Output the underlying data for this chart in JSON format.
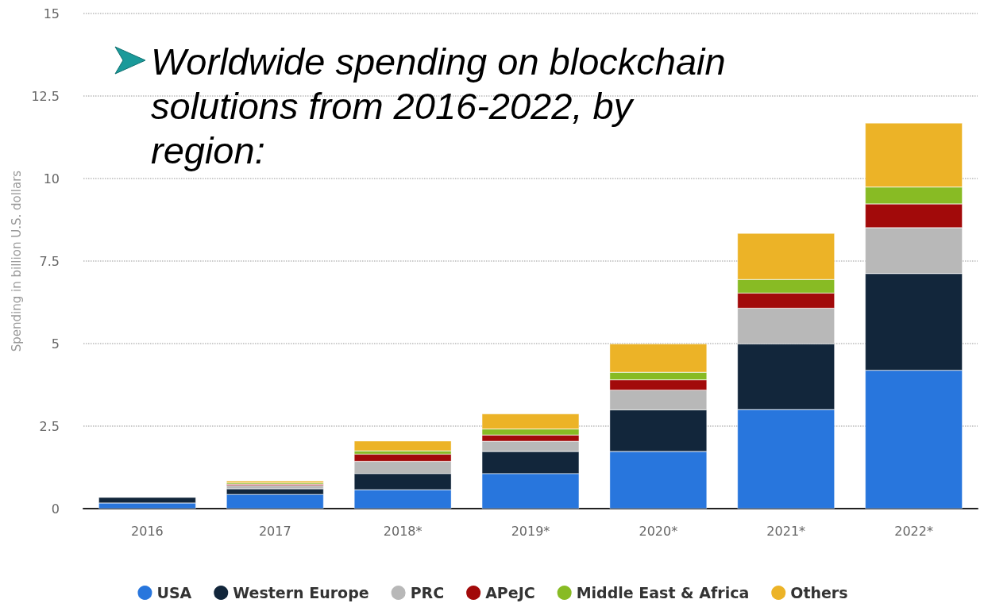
{
  "chart_data": {
    "type": "bar",
    "title": "Worldwide spending on blockchain solutions from 2016-2022, by region:",
    "ylabel": "Spending in billion U.S. dollars",
    "categories": [
      "2016",
      "2017",
      "2018*",
      "2019*",
      "2020*",
      "2021*",
      "2022*"
    ],
    "stacked": true,
    "series": [
      {
        "name": "USA",
        "color": "#2876dd",
        "values": [
          0.17,
          0.43,
          0.57,
          1.06,
          1.73,
          3.0,
          4.19
        ]
      },
      {
        "name": "Western Europe",
        "color": "#12263b",
        "values": [
          0.17,
          0.17,
          0.49,
          0.67,
          1.26,
          1.99,
          2.93
        ]
      },
      {
        "name": "PRC",
        "color": "#b8b8b8",
        "values": [
          null,
          0.1,
          0.37,
          0.31,
          0.6,
          1.08,
          1.39
        ]
      },
      {
        "name": "APeJC",
        "color": "#a20a0a",
        "values": [
          null,
          0.04,
          0.22,
          0.19,
          0.31,
          0.46,
          0.72
        ]
      },
      {
        "name": "Middle East & Africa",
        "color": "#88bb24",
        "values": [
          null,
          0.04,
          0.1,
          0.18,
          0.23,
          0.41,
          0.51
        ]
      },
      {
        "name": "Others",
        "color": "#ecb327",
        "values": [
          null,
          0.06,
          0.3,
          0.46,
          0.86,
          1.4,
          1.94
        ]
      }
    ],
    "ylim": [
      0,
      15
    ],
    "yticks": [
      0,
      2.5,
      5,
      7.5,
      10,
      12.5,
      15
    ],
    "grid": "y",
    "legend": "bottom"
  }
}
